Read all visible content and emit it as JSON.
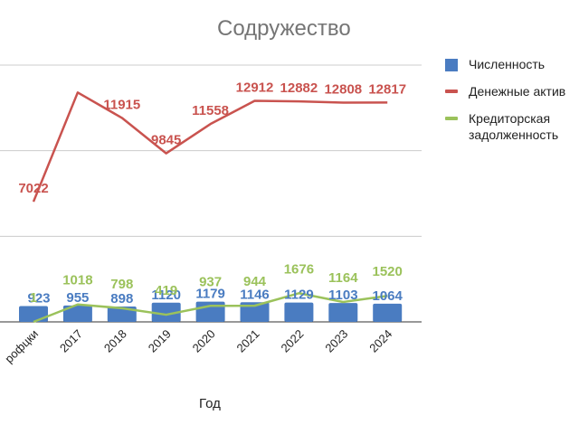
{
  "chart_data": {
    "type": "bar",
    "title": "Содружество",
    "xlabel": "Год",
    "ylabel": "",
    "categories": [
      "рофцки",
      "2017",
      "2018",
      "2019",
      "2020",
      "2021",
      "2022",
      "2023",
      "2024"
    ],
    "ylim": [
      0,
      15000
    ],
    "grid": true,
    "legend_position": "right",
    "series": [
      {
        "name": "Численность",
        "kind": "bar",
        "color": "#4a7cc1",
        "values": [
          923,
          955,
          898,
          1120,
          1179,
          1146,
          1129,
          1103,
          1064
        ]
      },
      {
        "name": "Денежные активы",
        "kind": "line",
        "color": "#c9534f",
        "values": [
          7022,
          13400,
          11915,
          9845,
          11558,
          12912,
          12882,
          12808,
          12817
        ]
      },
      {
        "name": "Кредиторская задолженность",
        "kind": "line",
        "color": "#9bc25b",
        "values": [
          1,
          1018,
          798,
          419,
          937,
          944,
          1676,
          1164,
          1520
        ]
      }
    ]
  },
  "legend": {
    "items": [
      {
        "label": "Численность",
        "color": "#4a7cc1"
      },
      {
        "label": "Денежные актив",
        "color": "#c9534f"
      },
      {
        "label": "Кредиторская задолженность",
        "color": "#9bc25b"
      }
    ]
  }
}
